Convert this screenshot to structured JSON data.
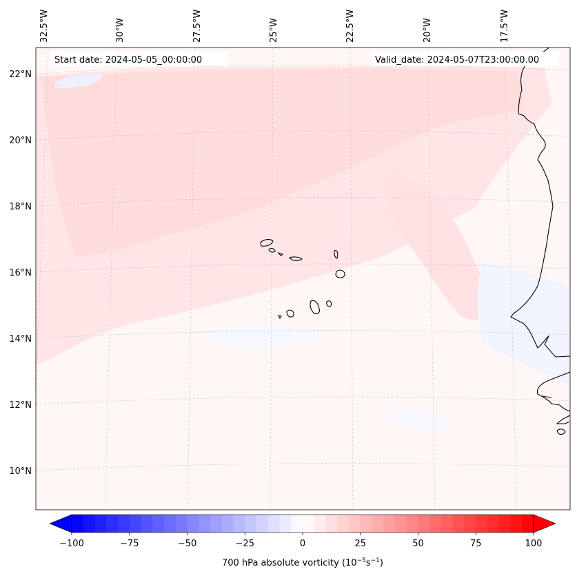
{
  "map": {
    "start_date": "Start date: 2024-05-05_00:00:00",
    "valid_date": "Valid_date: 2024-05-07T23:00:00.00",
    "lon_labels": [
      "32.5°W",
      "30°W",
      "27.5°W",
      "25°W",
      "22.5°W",
      "20°W",
      "17.5°W"
    ],
    "lat_labels": [
      "22°N",
      "20°N",
      "18°N",
      "16°N",
      "14°N",
      "12°N",
      "10°N"
    ]
  },
  "colorbar": {
    "label": "700 hPa absolute vorticity (10",
    "label_sup1": "−5",
    "label_mid": "s",
    "label_sup2": "−1",
    "label_end": ")",
    "min": -100,
    "max": 100,
    "ticks": [
      "−100",
      "−75",
      "−50",
      "−25",
      "0",
      "25",
      "50",
      "75",
      "100"
    ],
    "low_color": "#0000ff",
    "mid_color": "#ffffff",
    "high_color": "#ff0000"
  },
  "colors": {
    "land_outline": "#000000",
    "grid": "#b0b0b0",
    "field_base": "#fff6f6",
    "field_pink": "#ffe3e3",
    "field_blue": "#f4f6ff"
  }
}
